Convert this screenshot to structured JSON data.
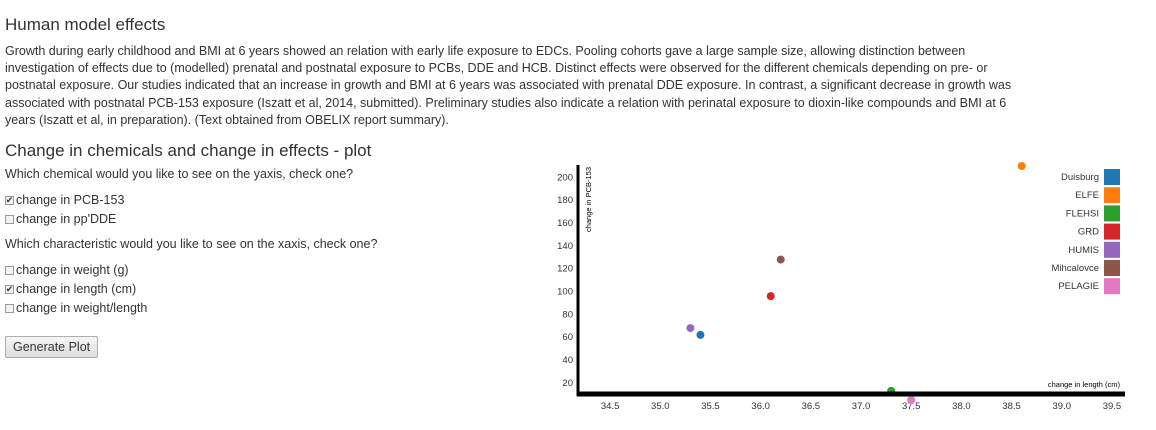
{
  "heading": "Human model effects",
  "description": "Growth during early childhood and BMI at 6 years showed an relation with early life exposure to EDCs. Pooling cohorts gave a large sample size, allowing distinction between investigation of effects due to (modelled) prenatal and postnatal exposure to PCBs, DDE and HCB. Distinct effects were observed for the different chemicals depending on pre- or postnatal exposure. Our studies indicated that an increase in growth and BMI at 6 years was associated with prenatal DDE exposure. In contrast, a significant decrease in growth was associated with postnatal PCB-153 exposure (Iszatt et al, 2014, submitted). Preliminary studies also indicate a relation with perinatal exposure to dioxin-like compounds and BMI at 6 years (Iszatt et al, in preparation). (Text obtained from OBELIX report summary).",
  "subheading": "Change in chemicals and change in effects - plot",
  "yaxis_question": "Which chemical would you like to see on the yaxis, check one?",
  "yaxis_options": [
    {
      "label": "change in PCB-153",
      "checked": true
    },
    {
      "label": "change in pp'DDE",
      "checked": false
    }
  ],
  "xaxis_question": "Which characteristic would you like to see on the xaxis, check one?",
  "xaxis_options": [
    {
      "label": "change in weight (g)",
      "checked": false
    },
    {
      "label": "change in length (cm)",
      "checked": true
    },
    {
      "label": "change in weight/length",
      "checked": false
    }
  ],
  "generate_button": "Generate Plot",
  "check_glyph": "✔",
  "chart_data": {
    "type": "scatter",
    "xlabel": "change in length (cm)",
    "ylabel": "change in PCB-153",
    "xlim": [
      34.2,
      39.6
    ],
    "ylim": [
      12,
      210
    ],
    "xticks": [
      "34.5",
      "35.0",
      "35.5",
      "36.0",
      "36.5",
      "37.0",
      "37.5",
      "38.0",
      "38.5",
      "39.0",
      "39.5"
    ],
    "yticks": [
      "20",
      "40",
      "60",
      "80",
      "100",
      "120",
      "140",
      "160",
      "180",
      "200"
    ],
    "legend_position": "right",
    "series": [
      {
        "name": "Duisburg",
        "color": "#1f77b4",
        "x": 35.4,
        "y": 62
      },
      {
        "name": "ELFE",
        "color": "#ff7f0e",
        "x": 38.6,
        "y": 210
      },
      {
        "name": "FLEHSI",
        "color": "#2ca02c",
        "x": 37.3,
        "y": 13
      },
      {
        "name": "GRD",
        "color": "#d62728",
        "x": 36.1,
        "y": 96
      },
      {
        "name": "HUMIS",
        "color": "#9467bd",
        "x": 35.3,
        "y": 68
      },
      {
        "name": "Mihcalovce",
        "color": "#8c564b",
        "x": 36.2,
        "y": 128
      },
      {
        "name": "PELAGIE",
        "color": "#e377c2",
        "x": 37.5,
        "y": 5
      }
    ]
  }
}
